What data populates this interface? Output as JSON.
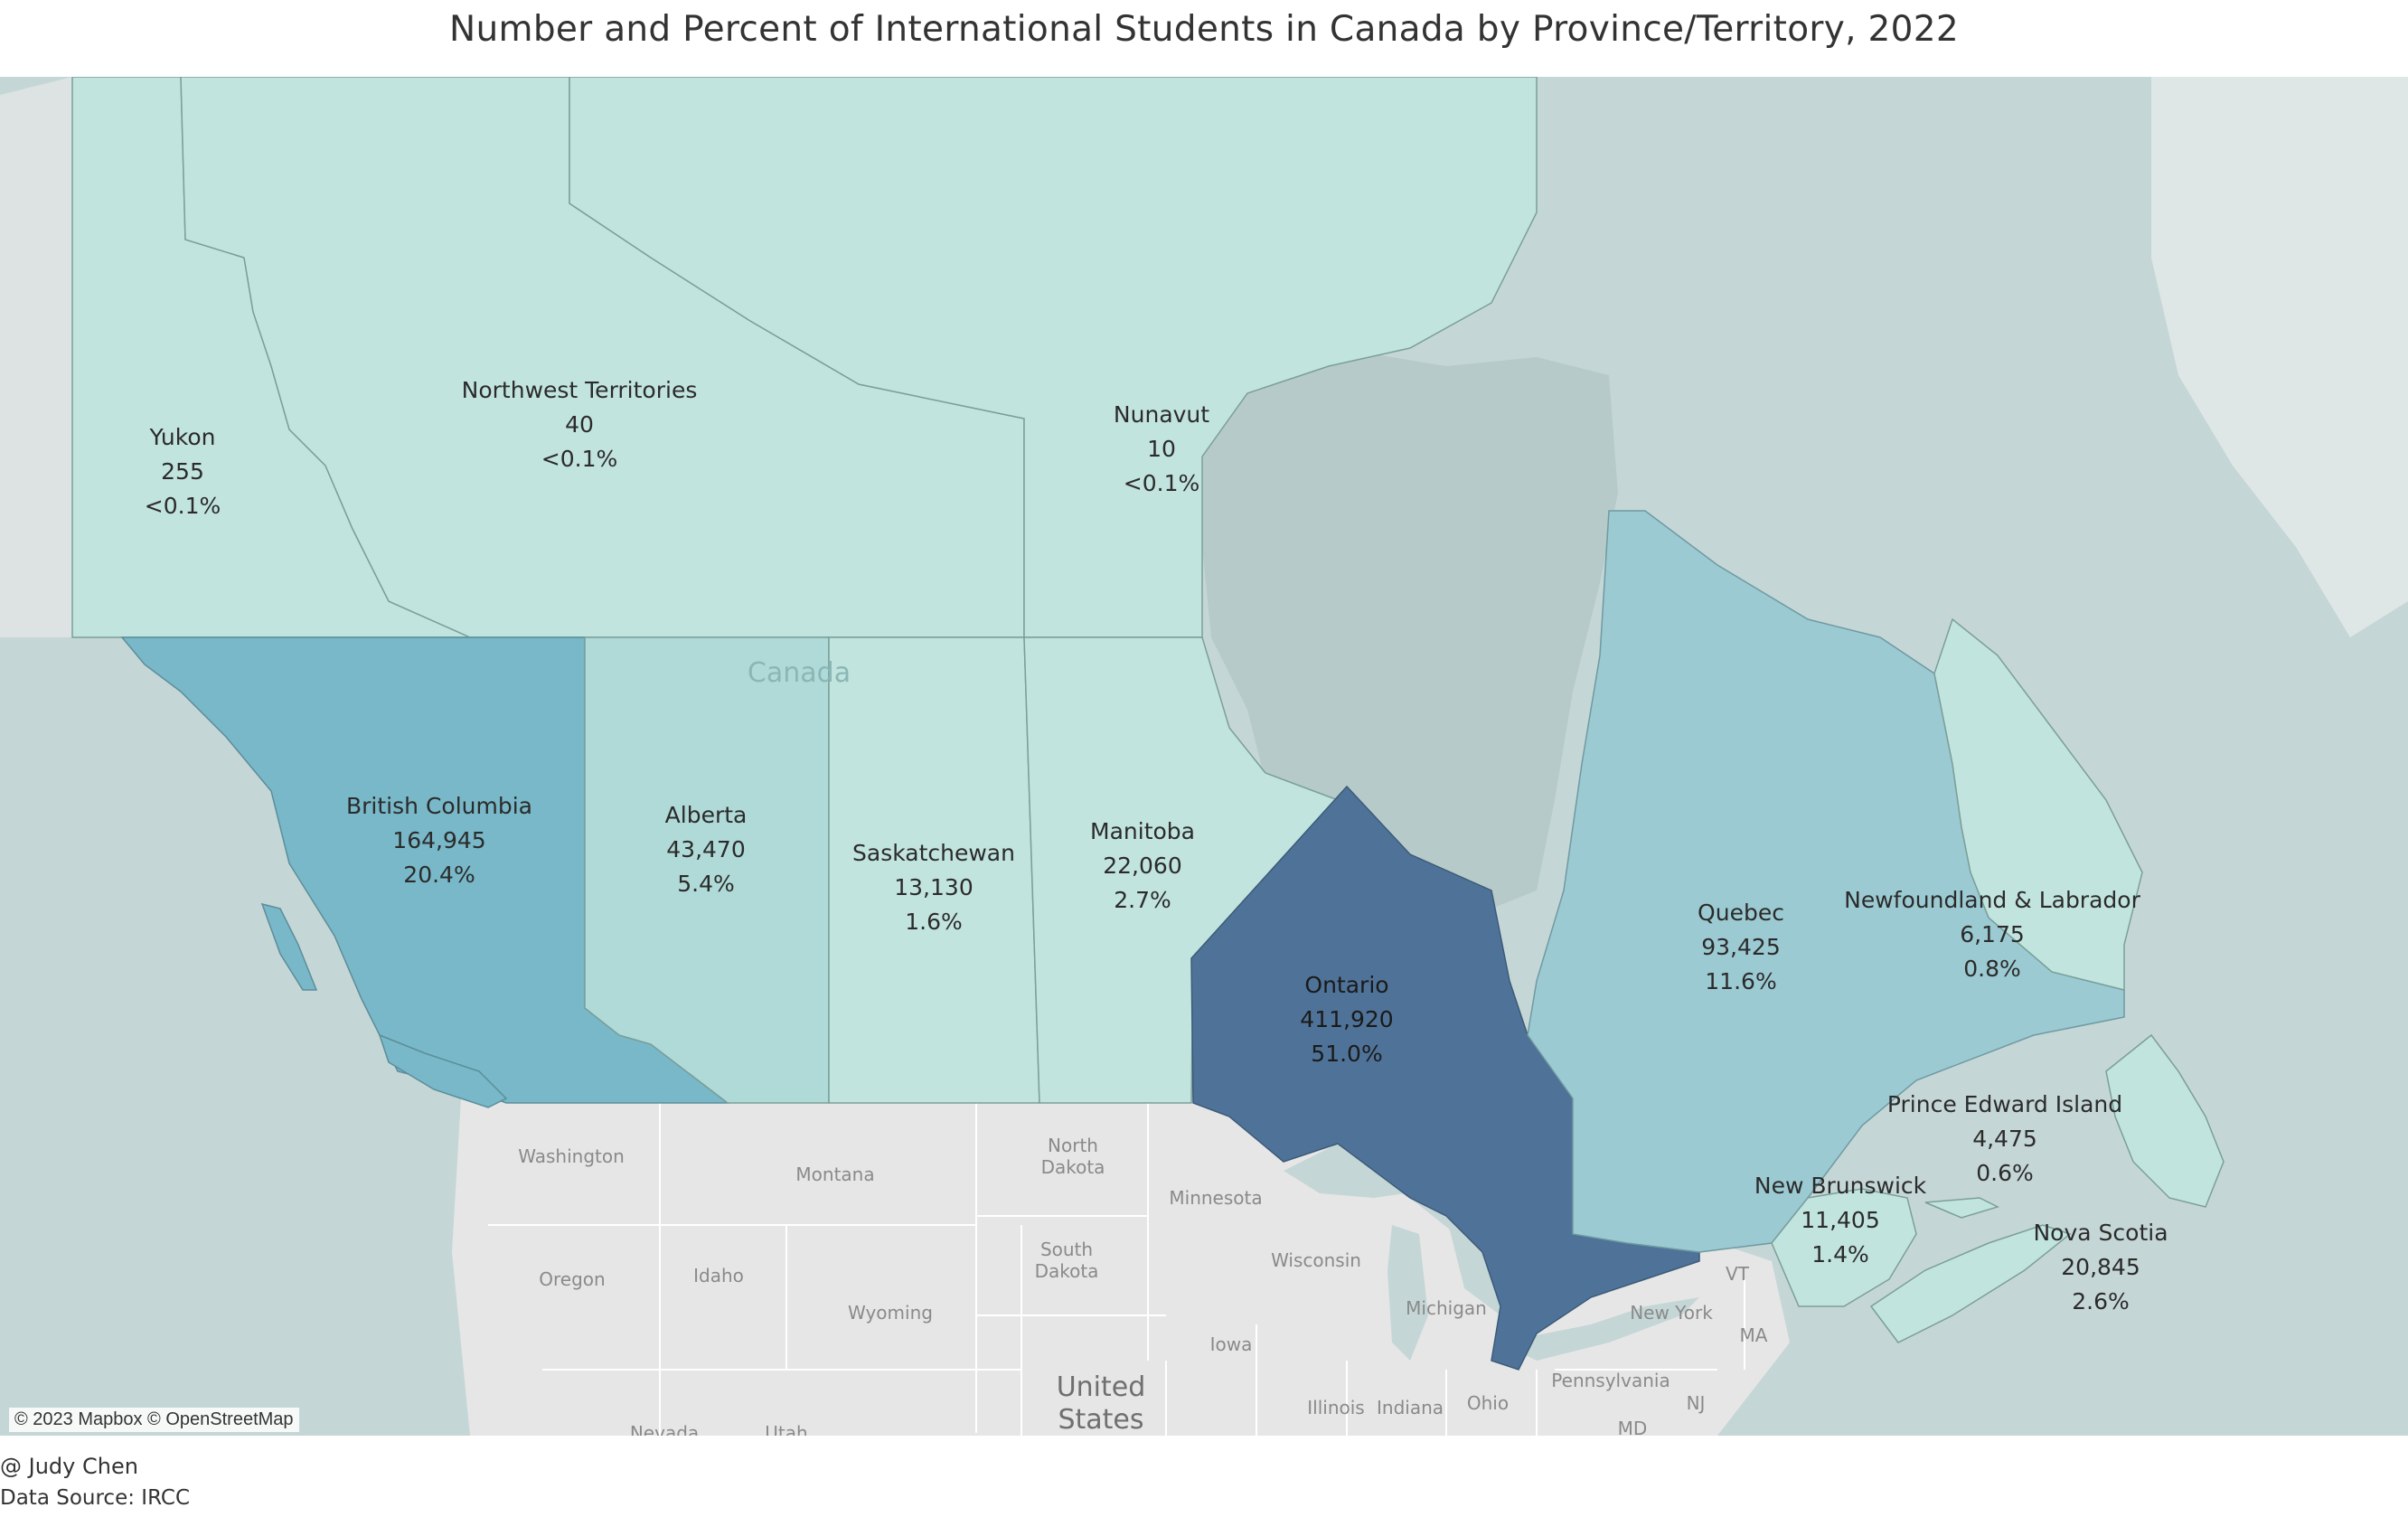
{
  "title": "Number and Percent of International Students in Canada by Province/Territory, 2022",
  "author": "@ Judy Chen",
  "source": "Data Source: IRCC",
  "attribution": "© 2023 Mapbox © OpenStreetMap",
  "colors": {
    "water": "#c5d6d6",
    "land_other": "#bfcfcf",
    "usa_land": "#e6e6e6",
    "tier_lowest": "#c2e4de",
    "tier_low": "#b0dad8",
    "tier_mid": "#9ccad2",
    "tier_high": "#78b8c8",
    "tier_highest": "#4f7398"
  },
  "map_data": {
    "metric": "International students",
    "year": 2022,
    "regions": [
      {
        "name": "Yukon",
        "value": "255",
        "percent": "<0.1%"
      },
      {
        "name": "Northwest Territories",
        "value": "40",
        "percent": "<0.1%"
      },
      {
        "name": "Nunavut",
        "value": "10",
        "percent": "<0.1%"
      },
      {
        "name": "British Columbia",
        "value": "164,945",
        "percent": "20.4%"
      },
      {
        "name": "Alberta",
        "value": "43,470",
        "percent": "5.4%"
      },
      {
        "name": "Saskatchewan",
        "value": "13,130",
        "percent": "1.6%"
      },
      {
        "name": "Manitoba",
        "value": "22,060",
        "percent": "2.7%"
      },
      {
        "name": "Ontario",
        "value": "411,920",
        "percent": "51.0%"
      },
      {
        "name": "Quebec",
        "value": "93,425",
        "percent": "11.6%"
      },
      {
        "name": "Newfoundland & Labrador",
        "value": "6,175",
        "percent": "0.8%"
      },
      {
        "name": "Prince Edward Island",
        "value": "4,475",
        "percent": "0.6%"
      },
      {
        "name": "New Brunswick",
        "value": "11,405",
        "percent": "1.4%"
      },
      {
        "name": "Nova Scotia",
        "value": "20,845",
        "percent": "2.6%"
      }
    ],
    "basemap_labels": [
      "Canada",
      "United States",
      "Washington",
      "Montana",
      "North Dakota",
      "Minnesota",
      "South Dakota",
      "Oregon",
      "Idaho",
      "Wyoming",
      "Wisconsin",
      "Michigan",
      "Iowa",
      "New York",
      "Pennsylvania",
      "Illinois",
      "Indiana",
      "Ohio",
      "Nevada",
      "Utah",
      "VT",
      "MA",
      "NJ",
      "MD"
    ]
  }
}
